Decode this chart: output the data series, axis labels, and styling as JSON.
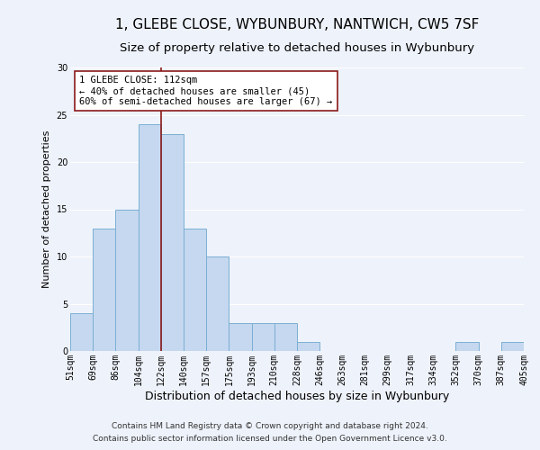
{
  "title": "1, GLEBE CLOSE, WYBUNBURY, NANTWICH, CW5 7SF",
  "subtitle": "Size of property relative to detached houses in Wybunbury",
  "xlabel": "Distribution of detached houses by size in Wybunbury",
  "ylabel": "Number of detached properties",
  "bar_values": [
    4,
    13,
    15,
    24,
    23,
    13,
    10,
    3,
    3,
    3,
    1,
    0,
    0,
    0,
    0,
    0,
    0,
    1,
    0,
    1
  ],
  "bin_labels": [
    "51sqm",
    "69sqm",
    "86sqm",
    "104sqm",
    "122sqm",
    "140sqm",
    "157sqm",
    "175sqm",
    "193sqm",
    "210sqm",
    "228sqm",
    "246sqm",
    "263sqm",
    "281sqm",
    "299sqm",
    "317sqm",
    "334sqm",
    "352sqm",
    "370sqm",
    "387sqm",
    "405sqm"
  ],
  "bar_color": "#C5D8EF",
  "bar_edge_color": "#7BAFD4",
  "vline_x_index": 3.5,
  "vline_color": "#8B1A1A",
  "annotation_text": "1 GLEBE CLOSE: 112sqm\n← 40% of detached houses are smaller (45)\n60% of semi-detached houses are larger (67) →",
  "annotation_box_color": "#8B1A1A",
  "ylim": [
    0,
    30
  ],
  "yticks": [
    0,
    5,
    10,
    15,
    20,
    25,
    30
  ],
  "footer_line1": "Contains HM Land Registry data © Crown copyright and database right 2024.",
  "footer_line2": "Contains public sector information licensed under the Open Government Licence v3.0.",
  "background_color": "#EEF2FA",
  "grid_color": "#FFFFFF",
  "title_fontsize": 11,
  "subtitle_fontsize": 9.5,
  "ylabel_fontsize": 8,
  "xlabel_fontsize": 9,
  "tick_fontsize": 7,
  "footer_fontsize": 6.5,
  "annotation_fontsize": 7.5
}
